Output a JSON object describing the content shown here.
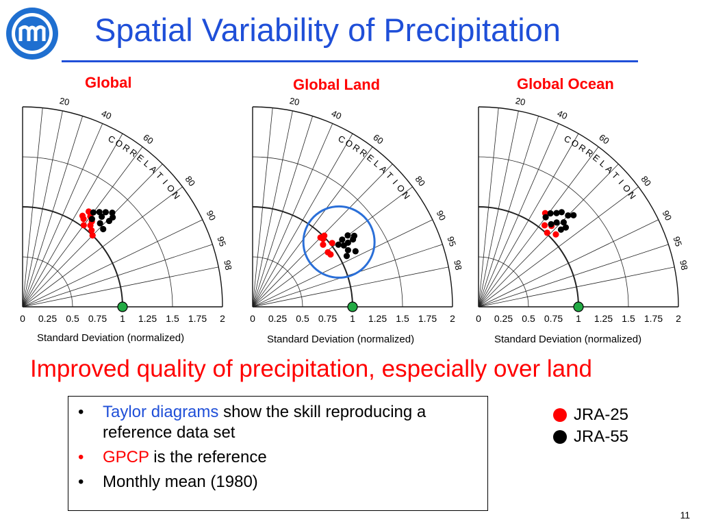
{
  "slide": {
    "title": "Spatial Variability of Precipitation",
    "tagline": "Improved quality of precipitation, especially over land",
    "page_number": "11",
    "accent_color": "#1f4fd8",
    "highlight_color": "#ff0000"
  },
  "bullets": [
    {
      "highlight": "Taylor diagrams",
      "highlight_color": "blue",
      "rest": " show the skill reproducing a reference data set"
    },
    {
      "highlight": "GPCP",
      "highlight_color": "red",
      "rest": " is the reference"
    },
    {
      "highlight": "",
      "highlight_color": "",
      "rest": "Monthly mean (1980)"
    }
  ],
  "legend": [
    {
      "label": "JRA-25",
      "color": "#ff0000"
    },
    {
      "label": "JRA-55",
      "color": "#000000"
    }
  ],
  "chart_data": [
    {
      "type": "scatter",
      "subtype": "taylor-diagram",
      "title": "Global",
      "xlabel": "Standard Deviation (normalized)",
      "angular_label": "CORRELATION",
      "correlation_ticks": [
        "20",
        "40",
        "60",
        "80",
        "90",
        "95",
        "98"
      ],
      "std_ticks": [
        "0",
        "0.25",
        "0.5",
        "0.75",
        "1",
        "1.25",
        "1.5",
        "1.75",
        "2"
      ],
      "xlim": [
        0,
        2
      ],
      "reference": {
        "name": "GPCP",
        "std": 1.0,
        "correlation": 1.0,
        "color": "#22aa44"
      },
      "highlight_circle": false,
      "series": [
        {
          "name": "JRA-25",
          "color": "#ff0000",
          "points": [
            {
              "std": 1.16,
              "correlation": 0.57
            },
            {
              "std": 1.09,
              "correlation": 0.55
            },
            {
              "std": 1.13,
              "correlation": 0.6
            },
            {
              "std": 1.02,
              "correlation": 0.6
            },
            {
              "std": 1.06,
              "correlation": 0.64
            },
            {
              "std": 1.03,
              "correlation": 0.67
            },
            {
              "std": 1.0,
              "correlation": 0.7
            },
            {
              "std": 1.1,
              "correlation": 0.63
            },
            {
              "std": 1.07,
              "correlation": 0.57
            }
          ]
        },
        {
          "name": "JRA-55",
          "color": "#000000",
          "points": [
            {
              "std": 1.12,
              "correlation": 0.62
            },
            {
              "std": 1.18,
              "correlation": 0.6
            },
            {
              "std": 1.22,
              "correlation": 0.63
            },
            {
              "std": 1.2,
              "correlation": 0.66
            },
            {
              "std": 1.14,
              "correlation": 0.68
            },
            {
              "std": 1.26,
              "correlation": 0.66
            },
            {
              "std": 1.27,
              "correlation": 0.71
            },
            {
              "std": 1.22,
              "correlation": 0.71
            },
            {
              "std": 1.12,
              "correlation": 0.72
            },
            {
              "std": 1.3,
              "correlation": 0.69
            }
          ]
        }
      ]
    },
    {
      "type": "scatter",
      "subtype": "taylor-diagram",
      "title": "Global Land",
      "xlabel": "Standard Deviation (normalized)",
      "angular_label": "CORRELATION",
      "correlation_ticks": [
        "20",
        "40",
        "60",
        "80",
        "90",
        "95",
        "98"
      ],
      "std_ticks": [
        "0",
        "0.25",
        "0.5",
        "0.75",
        "1",
        "1.25",
        "1.5",
        "1.75",
        "2"
      ],
      "xlim": [
        0,
        2
      ],
      "reference": {
        "name": "GPCP",
        "std": 1.0,
        "correlation": 1.0,
        "color": "#22aa44"
      },
      "highlight_circle": true,
      "series": [
        {
          "name": "JRA-25",
          "color": "#ff0000",
          "points": [
            {
              "std": 0.98,
              "correlation": 0.72
            },
            {
              "std": 1.01,
              "correlation": 0.71
            },
            {
              "std": 0.97,
              "correlation": 0.7
            },
            {
              "std": 0.94,
              "correlation": 0.75
            },
            {
              "std": 1.02,
              "correlation": 0.78
            },
            {
              "std": 0.93,
              "correlation": 0.81
            },
            {
              "std": 0.94,
              "correlation": 0.83
            }
          ]
        },
        {
          "name": "JRA-55",
          "color": "#000000",
          "points": [
            {
              "std": 1.06,
              "correlation": 0.81
            },
            {
              "std": 1.12,
              "correlation": 0.8
            },
            {
              "std": 1.15,
              "correlation": 0.83
            },
            {
              "std": 1.1,
              "correlation": 0.83
            },
            {
              "std": 1.19,
              "correlation": 0.8
            },
            {
              "std": 1.11,
              "correlation": 0.86
            },
            {
              "std": 1.21,
              "correlation": 0.83
            },
            {
              "std": 1.17,
              "correlation": 0.88
            },
            {
              "std": 1.07,
              "correlation": 0.88
            },
            {
              "std": 1.24,
              "correlation": 0.82
            }
          ]
        }
      ]
    },
    {
      "type": "scatter",
      "subtype": "taylor-diagram",
      "title": "Global Ocean",
      "xlabel": "Standard Deviation (normalized)",
      "angular_label": "CORRELATION",
      "correlation_ticks": [
        "20",
        "40",
        "60",
        "80",
        "90",
        "95",
        "98"
      ],
      "std_ticks": [
        "0",
        "0.25",
        "0.5",
        "0.75",
        "1",
        "1.25",
        "1.5",
        "1.75",
        "2"
      ],
      "xlim": [
        0,
        2
      ],
      "reference": {
        "name": "GPCP",
        "std": 1.0,
        "correlation": 1.0,
        "color": "#22aa44"
      },
      "highlight_circle": false,
      "series": [
        {
          "name": "JRA-25",
          "color": "#ff0000",
          "points": [
            {
              "std": 1.01,
              "correlation": 0.68
            },
            {
              "std": 1.05,
              "correlation": 0.63
            },
            {
              "std": 1.15,
              "correlation": 0.58
            },
            {
              "std": 1.06,
              "correlation": 0.73
            },
            {
              "std": 1.09,
              "correlation": 0.67
            }
          ]
        },
        {
          "name": "JRA-55",
          "color": "#000000",
          "points": [
            {
              "std": 1.12,
              "correlation": 0.6
            },
            {
              "std": 1.18,
              "correlation": 0.61
            },
            {
              "std": 1.22,
              "correlation": 0.64
            },
            {
              "std": 1.1,
              "correlation": 0.66
            },
            {
              "std": 1.15,
              "correlation": 0.68
            },
            {
              "std": 1.26,
              "correlation": 0.66
            },
            {
              "std": 1.2,
              "correlation": 0.71
            },
            {
              "std": 1.13,
              "correlation": 0.73
            },
            {
              "std": 1.28,
              "correlation": 0.7
            },
            {
              "std": 1.32,
              "correlation": 0.72
            },
            {
              "std": 1.18,
              "correlation": 0.74
            }
          ]
        }
      ]
    }
  ]
}
